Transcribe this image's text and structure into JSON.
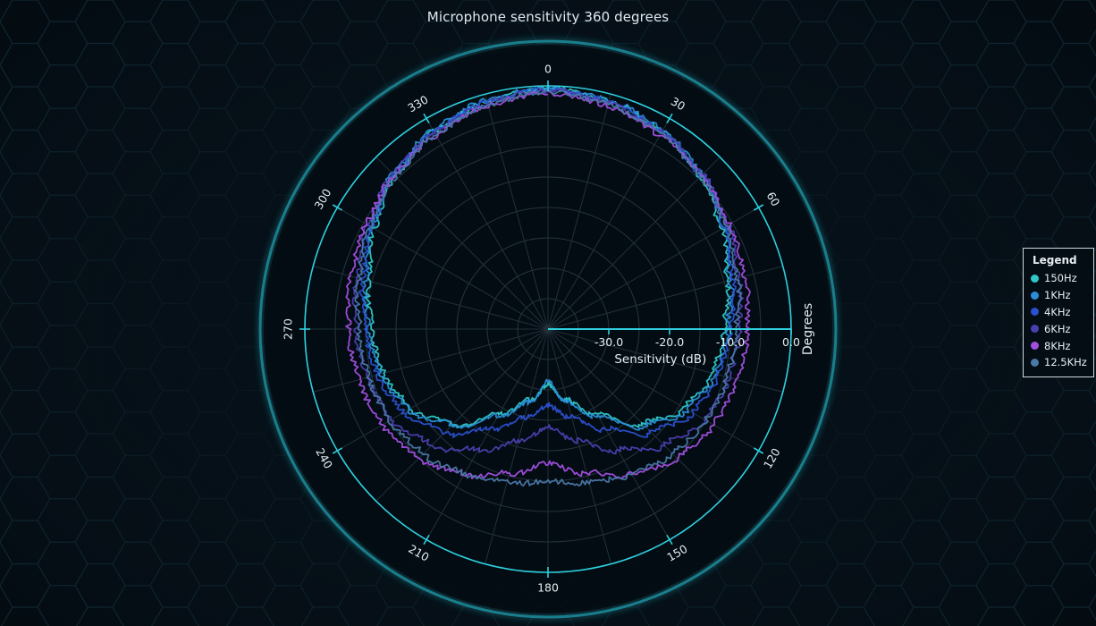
{
  "chart_data": {
    "type": "polar-line",
    "title": "Microphone sensitivity 360 degrees",
    "angular_axis": {
      "title": "Degrees",
      "ticks": [
        0,
        30,
        60,
        120,
        150,
        180,
        210,
        240,
        270,
        300,
        330
      ],
      "tick_labels": [
        "0",
        "30",
        "60",
        "120",
        "150",
        "180",
        "210",
        "240",
        "270",
        "300",
        "330"
      ],
      "range": [
        0,
        360
      ],
      "direction": "clockwise",
      "zero_at": "top"
    },
    "radial_axis": {
      "title": "Sensitivity (dB)",
      "range": [
        -40,
        0
      ],
      "ticks": [
        -30,
        -20,
        -10,
        0
      ],
      "tick_labels": [
        "-30.0",
        "-20.0",
        "-10.0",
        "0.0"
      ]
    },
    "legend": {
      "title": "Legend",
      "position": "right"
    },
    "series": [
      {
        "name": "150Hz",
        "color": "#2ec8c8",
        "angles": [
          0,
          15,
          30,
          45,
          60,
          75,
          90,
          105,
          120,
          135,
          150,
          165,
          180,
          195,
          210,
          225,
          240,
          255,
          270,
          285,
          300,
          315,
          330,
          345,
          360
        ],
        "values": [
          -0.5,
          -1.2,
          -2.5,
          -4.5,
          -7,
          -9.5,
          -11,
          -12,
          -14,
          -18,
          -24,
          -28,
          -31,
          -28,
          -24,
          -18,
          -14,
          -12,
          -11,
          -9.5,
          -7,
          -4.5,
          -2.5,
          -1.2,
          -0.5
        ]
      },
      {
        "name": "1KHz",
        "color": "#2a8fd8",
        "angles": [
          0,
          15,
          30,
          45,
          60,
          75,
          90,
          105,
          120,
          135,
          150,
          165,
          180,
          195,
          210,
          225,
          240,
          255,
          270,
          285,
          300,
          315,
          330,
          345,
          360
        ],
        "values": [
          -0.4,
          -1.0,
          -2.2,
          -4.0,
          -6.5,
          -9,
          -10.5,
          -11.5,
          -13.5,
          -17.5,
          -23.5,
          -27.5,
          -31.5,
          -27.5,
          -23.5,
          -17.5,
          -13.5,
          -11.5,
          -10.5,
          -9,
          -6.5,
          -4.0,
          -2.2,
          -1.0,
          -0.4
        ]
      },
      {
        "name": "4KHz",
        "color": "#2b50d0",
        "angles": [
          0,
          15,
          30,
          45,
          60,
          75,
          90,
          105,
          120,
          135,
          150,
          165,
          180,
          195,
          210,
          225,
          240,
          255,
          270,
          285,
          300,
          315,
          330,
          345,
          360
        ],
        "values": [
          -0.6,
          -1.3,
          -2.6,
          -4.3,
          -6.5,
          -8.5,
          -10,
          -11,
          -12.5,
          -16,
          -21,
          -25,
          -27.5,
          -25,
          -21,
          -16,
          -12.5,
          -11,
          -10,
          -8.5,
          -6.5,
          -4.3,
          -2.6,
          -1.3,
          -0.6
        ]
      },
      {
        "name": "6KHz",
        "color": "#4b3fb0",
        "angles": [
          0,
          15,
          30,
          45,
          60,
          75,
          90,
          105,
          120,
          135,
          150,
          165,
          180,
          195,
          210,
          225,
          240,
          255,
          270,
          285,
          300,
          315,
          330,
          345,
          360
        ],
        "values": [
          -0.8,
          -1.5,
          -2.6,
          -4.0,
          -5.8,
          -7.5,
          -8.5,
          -9.2,
          -10.2,
          -13,
          -17,
          -21,
          -24,
          -21,
          -17,
          -13,
          -10.2,
          -9.2,
          -8.5,
          -7.5,
          -5.8,
          -4.0,
          -2.6,
          -1.5,
          -0.8
        ]
      },
      {
        "name": "8KHz",
        "color": "#a24fe0",
        "angles": [
          0,
          15,
          30,
          45,
          60,
          75,
          90,
          105,
          120,
          135,
          150,
          165,
          180,
          195,
          210,
          225,
          240,
          255,
          270,
          285,
          300,
          315,
          330,
          345,
          360
        ],
        "values": [
          -1.2,
          -2.0,
          -3.2,
          -4.3,
          -5.5,
          -6.5,
          -7.2,
          -7.8,
          -8.5,
          -10,
          -12.5,
          -15.5,
          -18,
          -15.5,
          -12.5,
          -10,
          -8.5,
          -7.8,
          -7.2,
          -6.5,
          -5.5,
          -4.3,
          -3.2,
          -2.0,
          -1.2
        ]
      },
      {
        "name": "12.5KHz",
        "color": "#4a78a8",
        "angles": [
          0,
          15,
          30,
          45,
          60,
          75,
          90,
          105,
          120,
          135,
          150,
          165,
          180,
          195,
          210,
          225,
          240,
          255,
          270,
          285,
          300,
          315,
          330,
          345,
          360
        ],
        "values": [
          -1.0,
          -1.8,
          -3.0,
          -4.5,
          -6.2,
          -7.8,
          -9,
          -9.5,
          -10,
          -11,
          -12.5,
          -14,
          -15,
          -14,
          -12.5,
          -11,
          -10,
          -9.5,
          -9,
          -7.8,
          -6.2,
          -4.5,
          -3.0,
          -1.8,
          -1.0
        ]
      }
    ]
  }
}
